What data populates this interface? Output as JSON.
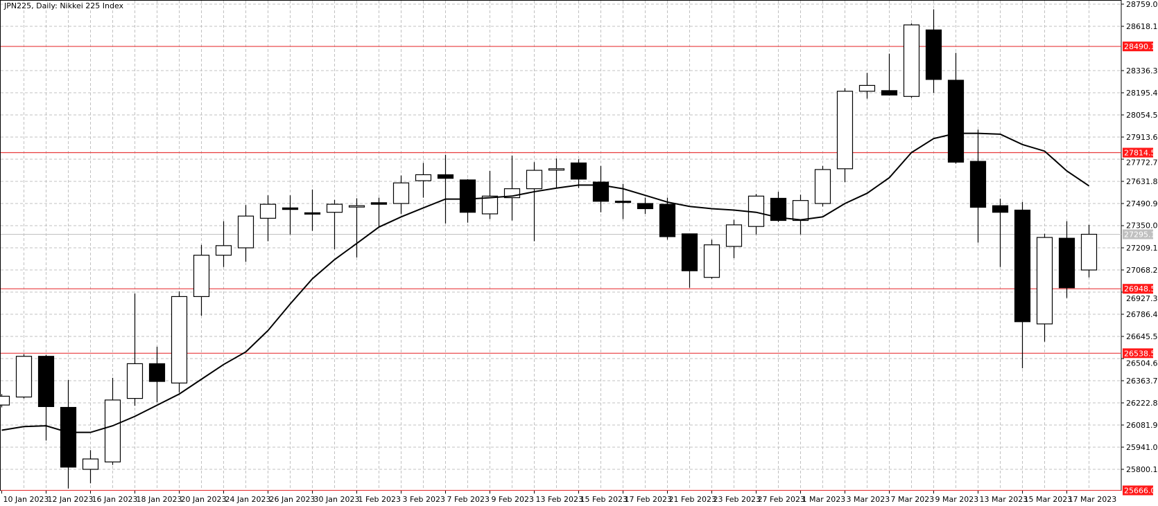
{
  "header": {
    "title": "JPN225, Daily:  Nikkei 225 Index"
  },
  "colors": {
    "background": "#ffffff",
    "grid": "#c0c0c0",
    "candle_bull": "#ffffff",
    "candle_bear": "#000000",
    "outline": "#000000",
    "level_line": "#e8393b",
    "level_label_bg": "#ff1a1a",
    "current_price": "#c0c0c0",
    "ma_line": "#000000"
  },
  "chart_data": {
    "type": "candlestick",
    "symbol": "JPN225",
    "timeframe": "Daily",
    "ylim": [
      25659.2,
      28759.0
    ],
    "grid": true,
    "y_ticks": [
      "28759.0",
      "28618.1",
      "28336.3",
      "28195.4",
      "28054.5",
      "27913.6",
      "27772.7",
      "27631.8",
      "27490.9",
      "27350.0",
      "27209.1",
      "27068.2",
      "26927.3",
      "26786.4",
      "26645.5",
      "26504.6",
      "26363.7",
      "26222.8",
      "26081.9",
      "25941.0",
      "25800.1"
    ],
    "x_tick_labels": [
      "10 Jan 2023",
      "12 Jan 2023",
      "16 Jan 2023",
      "18 Jan 2023",
      "20 Jan 2023",
      "24 Jan 2023",
      "26 Jan 2023",
      "30 Jan 2023",
      "1 Feb 2023",
      "3 Feb 2023",
      "7 Feb 2023",
      "9 Feb 2023",
      "13 Feb 2023",
      "15 Feb 2023",
      "17 Feb 2023",
      "21 Feb 2023",
      "23 Feb 2023",
      "27 Feb 2023",
      "1 Mar 2023",
      "3 Mar 2023",
      "7 Mar 2023",
      "9 Mar 2023",
      "13 Mar 2023",
      "15 Mar 2023",
      "17 Mar 2023"
    ],
    "candles_columns": [
      "date",
      "open",
      "high",
      "low",
      "close"
    ],
    "candles": [
      [
        "2023-01-10",
        26209,
        26279,
        26194,
        26265
      ],
      [
        "2023-01-11",
        26260,
        26533,
        26251,
        26519
      ],
      [
        "2023-01-12",
        26519,
        26528,
        25983,
        26199
      ],
      [
        "2023-01-13",
        26194,
        26368,
        25678,
        25814
      ],
      [
        "2023-01-16",
        25800,
        25922,
        25711,
        25866
      ],
      [
        "2023-01-17",
        25847,
        26382,
        25828,
        26241
      ],
      [
        "2023-01-18",
        26251,
        26918,
        26204,
        26472
      ],
      [
        "2023-01-19",
        26472,
        26580,
        26227,
        26359
      ],
      [
        "2023-01-20",
        26349,
        26932,
        26288,
        26899
      ],
      [
        "2023-01-23",
        26899,
        27228,
        26777,
        27162
      ],
      [
        "2023-01-24",
        27162,
        27378,
        27087,
        27223
      ],
      [
        "2023-01-25",
        27209,
        27481,
        27120,
        27411
      ],
      [
        "2023-01-26",
        27397,
        27543,
        27251,
        27486
      ],
      [
        "2023-01-27",
        27463,
        27543,
        27294,
        27453
      ],
      [
        "2023-01-30",
        27432,
        27580,
        27317,
        27430
      ],
      [
        "2023-01-31",
        27435,
        27514,
        27200,
        27486
      ],
      [
        "2023-02-01",
        27474,
        27524,
        27148,
        27477
      ],
      [
        "2023-02-02",
        27496,
        27528,
        27341,
        27486
      ],
      [
        "2023-02-03",
        27491,
        27669,
        27425,
        27622
      ],
      [
        "2023-02-06",
        27636,
        27749,
        27528,
        27674
      ],
      [
        "2023-02-07",
        27674,
        27801,
        27364,
        27651
      ],
      [
        "2023-02-08",
        27641,
        27646,
        27369,
        27435
      ],
      [
        "2023-02-09",
        27425,
        27698,
        27392,
        27538
      ],
      [
        "2023-02-10",
        27528,
        27796,
        27383,
        27585
      ],
      [
        "2023-02-13",
        27585,
        27754,
        27251,
        27702
      ],
      [
        "2023-02-14",
        27710,
        27777,
        27589,
        27712
      ],
      [
        "2023-02-15",
        27749,
        27773,
        27589,
        27646
      ],
      [
        "2023-02-16",
        27627,
        27730,
        27435,
        27505
      ],
      [
        "2023-02-17",
        27506,
        27616,
        27392,
        27505
      ],
      [
        "2023-02-20",
        27491,
        27528,
        27425,
        27458
      ],
      [
        "2023-02-21",
        27486,
        27528,
        27261,
        27280
      ],
      [
        "2023-02-22",
        27298,
        27298,
        26955,
        27063
      ],
      [
        "2023-02-23",
        27021,
        27261,
        27012,
        27228
      ],
      [
        "2023-02-24",
        27218,
        27387,
        27143,
        27355
      ],
      [
        "2023-02-27",
        27345,
        27552,
        27294,
        27538
      ],
      [
        "2023-02-28",
        27524,
        27566,
        27373,
        27383
      ],
      [
        "2023-03-01",
        27383,
        27547,
        27294,
        27510
      ],
      [
        "2023-03-02",
        27491,
        27730,
        27472,
        27707
      ],
      [
        "2023-03-03",
        27712,
        28224,
        27627,
        28205
      ],
      [
        "2023-03-06",
        28205,
        28322,
        28158,
        28242
      ],
      [
        "2023-03-07",
        28209,
        28444,
        28177,
        28181
      ],
      [
        "2023-03-08",
        28172,
        28637,
        28163,
        28627
      ],
      [
        "2023-03-09",
        28595,
        28726,
        28195,
        28280
      ],
      [
        "2023-03-10",
        28275,
        28449,
        27744,
        27754
      ],
      [
        "2023-03-13",
        27759,
        27961,
        27242,
        27467
      ],
      [
        "2023-03-14",
        27477,
        27522,
        27087,
        27435
      ],
      [
        "2023-03-15",
        27449,
        27500,
        26443,
        26739
      ],
      [
        "2023-03-16",
        26725,
        27298,
        26612,
        27275
      ],
      [
        "2023-03-17",
        27270,
        27378,
        26890,
        26955
      ],
      [
        "2023-03-20",
        27068,
        27355,
        27021,
        27295.1
      ]
    ],
    "moving_average": [
      26049,
      26072,
      26077,
      26035,
      26035,
      26077,
      26137,
      26208,
      26279,
      26373,
      26467,
      26547,
      26683,
      26852,
      27012,
      27134,
      27237,
      27341,
      27406,
      27463,
      27519,
      27519,
      27528,
      27538,
      27566,
      27589,
      27608,
      27608,
      27585,
      27543,
      27500,
      27472,
      27458,
      27449,
      27435,
      27402,
      27387,
      27406,
      27491,
      27556,
      27655,
      27815,
      27904,
      27937,
      27937,
      27932,
      27866,
      27824,
      27698,
      27603
    ],
    "levels": [
      {
        "value": "28490.1",
        "color": "#e8393b"
      },
      {
        "value": "27814.5",
        "color": "#e8393b"
      },
      {
        "value": "26948.5",
        "color": "#e8393b"
      },
      {
        "value": "26538.5",
        "color": "#e8393b"
      },
      {
        "value": "25666.0",
        "color": "#e8393b"
      }
    ],
    "current_price": "27295.1"
  }
}
